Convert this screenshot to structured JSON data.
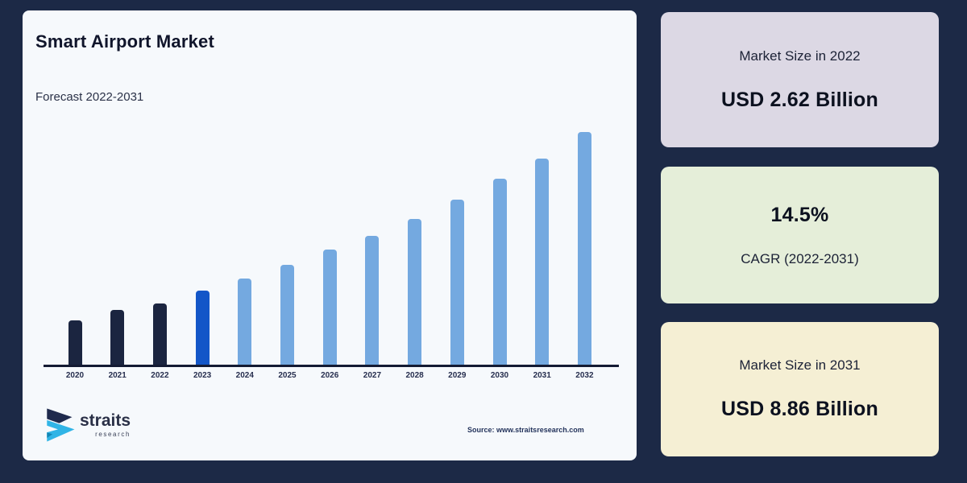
{
  "page": {
    "background": "#1c2946",
    "card_background": "#f6f9fc"
  },
  "header": {
    "title": "Smart Airport Market",
    "subtitle": "Forecast 2022-2031"
  },
  "footer": {
    "logo_name": "straits",
    "logo_sub": "research",
    "source": "Source: www.straitsresearch.com"
  },
  "chart_data": {
    "type": "bar",
    "title": "Smart Airport Market",
    "subtitle": "Forecast 2022-2031",
    "unit": "USD Billion",
    "categories": [
      "2020",
      "2021",
      "2022",
      "2023",
      "2024",
      "2025",
      "2026",
      "2027",
      "2028",
      "2029",
      "2030",
      "2031",
      "2032"
    ],
    "values": [
      1.9,
      2.35,
      2.62,
      3.2,
      3.7,
      4.3,
      4.95,
      5.55,
      6.25,
      7.1,
      8.0,
      8.86,
      10.0
    ],
    "ylim": [
      0,
      10.5
    ],
    "grid": false,
    "legend": "none",
    "colors": {
      "historical": "#1b2540",
      "highlight": "#1356c8",
      "forecast": "#74a9e0",
      "axis": "#141b33"
    },
    "color_map": [
      "historical",
      "historical",
      "historical",
      "highlight",
      "forecast",
      "forecast",
      "forecast",
      "forecast",
      "forecast",
      "forecast",
      "forecast",
      "forecast",
      "forecast"
    ]
  },
  "stat_cards": [
    {
      "name": "market-size-2022-card",
      "bg": "#dcd8e4",
      "rows": [
        {
          "kind": "label",
          "text": "Market Size in 2022"
        },
        {
          "kind": "value",
          "text": "USD 2.62 Billion"
        }
      ]
    },
    {
      "name": "cagr-card",
      "bg": "#e5eed9",
      "rows": [
        {
          "kind": "value",
          "text": "14.5%"
        },
        {
          "kind": "label",
          "text": "CAGR (2022-2031)"
        }
      ]
    },
    {
      "name": "market-size-2031-card",
      "bg": "#f5efd4",
      "rows": [
        {
          "kind": "label",
          "text": "Market Size in 2031"
        },
        {
          "kind": "value",
          "text": "USD 8.86 Billion"
        }
      ]
    }
  ]
}
